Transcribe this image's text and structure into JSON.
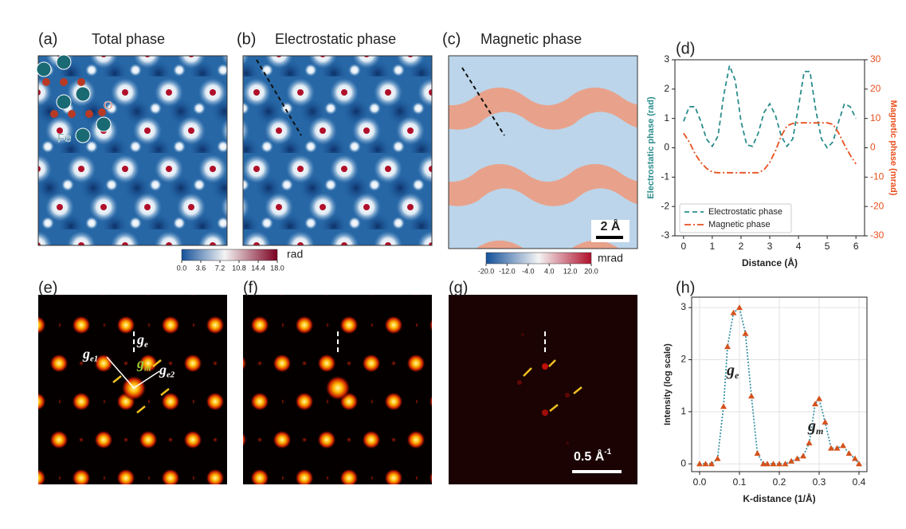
{
  "panels": [
    {
      "label": "(a)",
      "title": "Total phase",
      "atoms": [
        "Fe",
        "O"
      ]
    },
    {
      "label": "(b)",
      "title": "Electrostatic phase"
    },
    {
      "label": "(c)",
      "title": "Magnetic phase",
      "scale_bar": "2 Å"
    },
    {
      "label": "(d)"
    },
    {
      "label": "(e)",
      "annotations": [
        {
          "symbol": "g",
          "subscript": "e"
        },
        {
          "symbol": "g",
          "subscript": "e1"
        },
        {
          "symbol": "g",
          "subscript": "m"
        },
        {
          "symbol": "g",
          "subscript": "e2"
        }
      ]
    },
    {
      "label": "(f)"
    },
    {
      "label": "(g)",
      "scale_bar": "0.5 Å",
      "scale_bar_sup": "-1"
    },
    {
      "label": "(h)"
    }
  ],
  "colorbars": [
    {
      "unit": "rad",
      "ticks": [
        {
          "value": 0,
          "label": "0.0"
        },
        3.6,
        7.2,
        10.8,
        14.4,
        {
          "value": 18,
          "label": "18.0"
        }
      ]
    },
    {
      "unit": "mrad",
      "ticks": [
        {
          "value": -20,
          "label": "-20.0"
        },
        {
          "value": -12,
          "label": "-12.0"
        },
        {
          "value": -4,
          "label": "-4.0"
        },
        {
          "value": 4,
          "label": "4.0"
        },
        {
          "value": 12,
          "label": "12.0"
        },
        {
          "value": 20,
          "label": "20.0"
        }
      ]
    }
  ],
  "chart_data": [
    {
      "type": "line",
      "xlabel": "Distance (Å)",
      "ylabel": "Electrostatic phase (rad)",
      "y2label": "Magnetic phase (mrad)",
      "x": [
        0,
        0.2,
        0.4,
        0.6,
        0.8,
        1,
        1.2,
        1.4,
        1.6,
        1.8,
        2,
        2.2,
        2.4,
        2.6,
        2.8,
        3,
        3.2,
        3.4,
        3.6,
        3.8,
        4,
        4.2,
        4.4,
        4.6,
        4.8,
        5,
        5.2,
        5.4,
        5.6,
        5.8,
        6
      ],
      "series": [
        {
          "name": "Electrostatic phase",
          "color": "#2a8c8c",
          "dash": "dashed",
          "axis": "y",
          "values": [
            0.9,
            1.4,
            1.4,
            0.9,
            0.3,
            0.05,
            0.4,
            1.8,
            2.8,
            2.3,
            0.9,
            0.1,
            0.05,
            0.5,
            1.2,
            1.5,
            1.1,
            0.4,
            0.05,
            0.3,
            1.4,
            2.6,
            2.6,
            1.3,
            0.3,
            0,
            0.2,
            0.9,
            1.5,
            1.4,
            1
          ]
        },
        {
          "name": "Magnetic phase",
          "color": "#e8501e",
          "dash": "dashdot",
          "axis": "y2",
          "values": [
            5,
            2,
            -2,
            -5,
            -7,
            -8.3,
            -8.5,
            -8.5,
            -8.5,
            -8.5,
            -8.5,
            -8.5,
            -8.5,
            -8.5,
            -7.5,
            -5,
            -1,
            4,
            7.5,
            8.3,
            8.5,
            8.5,
            8.5,
            8.5,
            8.5,
            8.5,
            8,
            5,
            1,
            -2.5,
            -5.5
          ]
        }
      ],
      "xlim": [
        -0.3,
        6.3
      ],
      "xticks": [
        0,
        1,
        2,
        3,
        4,
        5,
        6
      ],
      "ylim": [
        -3,
        3
      ],
      "yticks": [
        -3,
        -2,
        -1,
        0,
        1,
        2,
        3
      ],
      "y2lim": [
        -30,
        30
      ],
      "y2ticks": [
        -30,
        -20,
        -10,
        0,
        10,
        20,
        30
      ],
      "grid": false,
      "legend": "lower left"
    },
    {
      "type": "line",
      "xlabel": "K-distance (1/Å)",
      "ylabel": "Intensity (log scale)",
      "x": [
        0,
        0.015,
        0.03,
        0.045,
        0.06,
        0.07,
        0.085,
        0.1,
        0.115,
        0.13,
        0.145,
        0.16,
        0.17,
        0.185,
        0.2,
        0.215,
        0.23,
        0.245,
        0.26,
        0.275,
        0.29,
        0.3,
        0.315,
        0.33,
        0.345,
        0.36,
        0.375,
        0.39,
        0.4
      ],
      "series": [
        {
          "color": "#3a92a4",
          "marker_color": "#d4521c",
          "dash": "dotted",
          "marker": "triangle",
          "values": [
            0,
            0,
            0,
            0.1,
            1.1,
            2.25,
            2.9,
            3,
            2.5,
            1.3,
            0.2,
            0,
            0,
            0,
            0,
            0,
            0.05,
            0.1,
            0.15,
            0.4,
            1.15,
            1.25,
            0.8,
            0.3,
            0.3,
            0.35,
            0.2,
            0.1,
            0
          ]
        }
      ],
      "xlim": [
        -0.02,
        0.42
      ],
      "xticks": [
        {
          "value": 0,
          "label": "0.0"
        },
        0.1,
        0.2,
        0.3,
        0.4
      ],
      "ylim": [
        -0.15,
        3.2
      ],
      "yticks": [
        0,
        1,
        2,
        3
      ],
      "grid": true,
      "annotations": [
        {
          "symbol": "g",
          "subscript": "e"
        },
        {
          "symbol": "g",
          "subscript": "m"
        }
      ]
    }
  ]
}
